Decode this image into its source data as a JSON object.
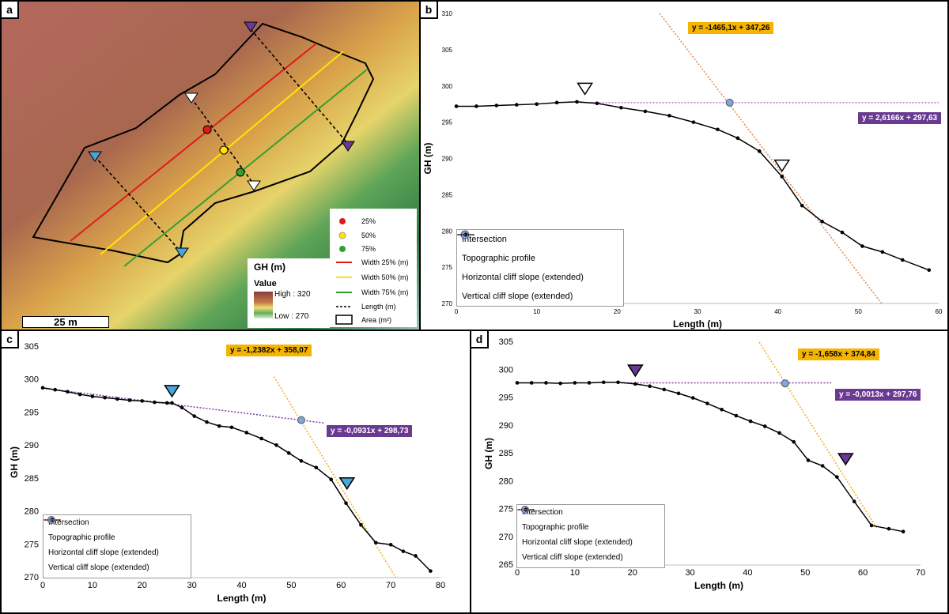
{
  "panels": {
    "a": "a",
    "b": "b",
    "c": "c",
    "d": "d"
  },
  "map": {
    "legend_points": [
      "25%",
      "50%",
      "75%"
    ],
    "legend_lines": [
      "Width 25% (m)",
      "Width 50% (m)",
      "Width 75% (m)",
      "Length (m)",
      "Area (m²)"
    ],
    "gh_title": "GH (m)",
    "value_label": "Value",
    "high_label": "High : 320",
    "low_label": "Low : 270",
    "scale": "25 m",
    "colors": {
      "red": "#e31a1c",
      "yellow": "#ffe600",
      "green": "#33a02c",
      "purple": "#6a3a92",
      "blue": "#4aa6d8"
    }
  },
  "chart_data": [
    {
      "panel": "b",
      "type": "line",
      "xlabel": "Length (m)",
      "ylabel": "GH (m)",
      "xlim": [
        0,
        60
      ],
      "ylim": [
        270,
        310
      ],
      "xticks": [
        0,
        10,
        20,
        30,
        40,
        50,
        60
      ],
      "yticks": [
        270,
        275,
        280,
        285,
        290,
        295,
        300,
        305,
        310
      ],
      "series": [
        {
          "name": "Topographic profile",
          "x": [
            0,
            2.5,
            5,
            7.5,
            10,
            12.5,
            15,
            17.5,
            20.5,
            23.5,
            26.5,
            29.5,
            32.5,
            35,
            37.7,
            40.5,
            43,
            45.5,
            48,
            50.5,
            53,
            55.5,
            58.8
          ],
          "y": [
            297.2,
            297.2,
            297.3,
            297.4,
            297.5,
            297.7,
            297.8,
            297.6,
            297.0,
            296.5,
            295.9,
            295.0,
            294.0,
            292.8,
            291.0,
            287.5,
            283.5,
            281.3,
            279.8,
            277.9,
            277.1,
            276.0,
            274.6
          ]
        },
        {
          "name": "Horizontal cliff slope (extended)",
          "x": [
            15,
            60
          ],
          "y": [
            297.7,
            297.7
          ]
        },
        {
          "name": "Vertical cliff slope (extended)",
          "x": [
            25.3,
            52.9
          ],
          "y": [
            310,
            270
          ]
        }
      ],
      "intersection": {
        "x": 34,
        "y": 297.7
      },
      "markers": [
        {
          "x": 16,
          "y": 299.6,
          "label": "white"
        },
        {
          "x": 40.5,
          "y": 289,
          "label": "white"
        }
      ],
      "eq_orange": "y = -1465,1x + 347,26",
      "eq_purple": "y = 2,6166x + 297,63",
      "legend": [
        "Intersection",
        "Topographic profile",
        "Horizontal cliff slope (extended)",
        "Vertical cliff slope (extended)"
      ]
    },
    {
      "panel": "c",
      "type": "line",
      "xlabel": "Length (m)",
      "ylabel": "GH (m)",
      "xlim": [
        0,
        80
      ],
      "ylim": [
        270,
        305
      ],
      "xticks": [
        0,
        10,
        20,
        30,
        40,
        50,
        60,
        70,
        80
      ],
      "yticks": [
        270,
        275,
        280,
        285,
        290,
        295,
        300,
        305
      ],
      "series": [
        {
          "name": "Topographic profile",
          "x": [
            0,
            2.5,
            5,
            7.5,
            10,
            12.5,
            15,
            17.5,
            20,
            22.5,
            25,
            26,
            28,
            30.5,
            33,
            35.5,
            38,
            41,
            44,
            47,
            49.5,
            52,
            55,
            58,
            61,
            64,
            67,
            70,
            72.5,
            75,
            78
          ],
          "y": [
            298.8,
            298.5,
            298.2,
            297.8,
            297.5,
            297.3,
            297.1,
            296.9,
            296.8,
            296.6,
            296.5,
            296.5,
            295.8,
            294.5,
            293.6,
            293.0,
            292.8,
            292.0,
            291.1,
            290.1,
            288.9,
            287.7,
            286.7,
            284.9,
            281.3,
            278.0,
            275.3,
            275.0,
            274.0,
            273.3,
            271.0
          ]
        },
        {
          "name": "Horizontal cliff slope (extended)",
          "x": [
            0,
            56.5
          ],
          "y": [
            298.73,
            293.47
          ]
        },
        {
          "name": "Vertical cliff slope (extended)",
          "x": [
            46.5,
            71
          ],
          "y": [
            300.5,
            270
          ]
        }
      ],
      "intersection": {
        "x": 52,
        "y": 293.9
      },
      "markers": [
        {
          "x": 26,
          "y": 298.3,
          "label": "blue"
        },
        {
          "x": 61.2,
          "y": 284.3,
          "label": "blue"
        }
      ],
      "eq_orange": "y = -1,2382x + 358,07",
      "eq_purple": "y = -0,0931x + 298,73",
      "legend": [
        "Intersection",
        "Topographic profile",
        "Horizontal cliff slope (extended)",
        "Vertical cliff slope (extended)"
      ]
    },
    {
      "panel": "d",
      "type": "line",
      "xlabel": "Length (m)",
      "ylabel": "GH (m)",
      "xlim": [
        0,
        70
      ],
      "ylim": [
        265,
        305
      ],
      "xticks": [
        0,
        10,
        20,
        30,
        40,
        50,
        60,
        70
      ],
      "yticks": [
        265,
        270,
        275,
        280,
        285,
        290,
        295,
        300,
        305
      ],
      "series": [
        {
          "name": "Topographic profile",
          "x": [
            0,
            2.5,
            5,
            7.5,
            10,
            12.5,
            15,
            17.5,
            20.5,
            23,
            25.5,
            28,
            30.5,
            33,
            35.5,
            38,
            40.5,
            43,
            45.5,
            48,
            50.5,
            53,
            55.5,
            58.5,
            61.5,
            64.5,
            67
          ],
          "y": [
            297.7,
            297.7,
            297.7,
            297.6,
            297.7,
            297.7,
            297.8,
            297.8,
            297.5,
            297.1,
            296.5,
            295.8,
            295.0,
            294.0,
            292.9,
            291.8,
            290.8,
            289.9,
            288.7,
            287.1,
            283.8,
            282.8,
            280.8,
            276.4,
            272.1,
            271.5,
            271.0
          ]
        },
        {
          "name": "Horizontal cliff slope (extended)",
          "x": [
            17.5,
            54.5
          ],
          "y": [
            297.7,
            297.7
          ]
        },
        {
          "name": "Vertical cliff slope (extended)",
          "x": [
            42,
            62.5
          ],
          "y": [
            305,
            271.5
          ]
        }
      ],
      "intersection": {
        "x": 46.5,
        "y": 297.6
      },
      "markers": [
        {
          "x": 20.5,
          "y": 299.9,
          "label": "purple"
        },
        {
          "x": 57,
          "y": 284,
          "label": "purple"
        }
      ],
      "eq_orange": "y = -1,658x + 374,84",
      "eq_purple": "y = -0,0013x + 297,76",
      "legend": [
        "Intersection",
        "Topographic profile",
        "Horizontal cliff slope (extended)",
        "Vertical cliff slope (extended)"
      ]
    }
  ]
}
